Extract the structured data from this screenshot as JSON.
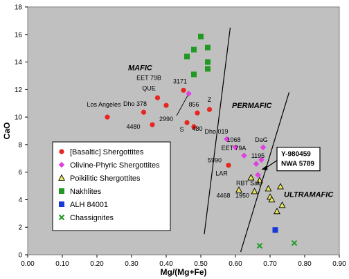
{
  "chart_data": {
    "type": "scatter",
    "xlabel": "Mg/(Mg+Fe)",
    "ylabel": "CaO",
    "xlim": [
      0,
      0.9
    ],
    "ylim": [
      0,
      18
    ],
    "xticks": [
      "0.00",
      "0.10",
      "0.20",
      "0.30",
      "0.40",
      "0.50",
      "0.60",
      "0.70",
      "0.80",
      "0.90"
    ],
    "yticks": [
      "0",
      "2",
      "4",
      "6",
      "8",
      "10",
      "12",
      "14",
      "16",
      "18"
    ],
    "grid": false,
    "legend_placement": "bottom-left",
    "series": [
      {
        "name": "[Basaltic] Shergottites",
        "marker": "circle",
        "color": "#e8251e",
        "points": [
          {
            "x": 0.23,
            "y": 10.0
          },
          {
            "x": 0.335,
            "y": 10.35
          },
          {
            "x": 0.36,
            "y": 9.45
          },
          {
            "x": 0.375,
            "y": 11.4
          },
          {
            "x": 0.4,
            "y": 10.85
          },
          {
            "x": 0.45,
            "y": 11.95
          },
          {
            "x": 0.46,
            "y": 9.6
          },
          {
            "x": 0.48,
            "y": 9.3
          },
          {
            "x": 0.49,
            "y": 10.3
          },
          {
            "x": 0.525,
            "y": 10.55
          },
          {
            "x": 0.58,
            "y": 6.5
          }
        ]
      },
      {
        "name": "Olivine-Phyric Shergottites",
        "marker": "diamond",
        "color": "#e040e0",
        "points": [
          {
            "x": 0.465,
            "y": 11.7
          },
          {
            "x": 0.575,
            "y": 8.4
          },
          {
            "x": 0.6,
            "y": 7.8
          },
          {
            "x": 0.625,
            "y": 7.2
          },
          {
            "x": 0.68,
            "y": 7.8
          },
          {
            "x": 0.675,
            "y": 6.9
          },
          {
            "x": 0.66,
            "y": 6.6
          },
          {
            "x": 0.665,
            "y": 5.8
          }
        ]
      },
      {
        "name": "Poikilitic Shergottites",
        "marker": "triangle",
        "color": "#e8e860",
        "points": [
          {
            "x": 0.61,
            "y": 4.7
          },
          {
            "x": 0.645,
            "y": 5.6
          },
          {
            "x": 0.655,
            "y": 4.6
          },
          {
            "x": 0.67,
            "y": 5.4
          },
          {
            "x": 0.695,
            "y": 4.8
          },
          {
            "x": 0.7,
            "y": 4.2
          },
          {
            "x": 0.705,
            "y": 4.0
          },
          {
            "x": 0.72,
            "y": 3.15
          },
          {
            "x": 0.73,
            "y": 4.95
          },
          {
            "x": 0.735,
            "y": 3.6
          }
        ]
      },
      {
        "name": "Nakhlites",
        "marker": "square",
        "color": "#229922",
        "points": [
          {
            "x": 0.5,
            "y": 15.85
          },
          {
            "x": 0.52,
            "y": 15.05
          },
          {
            "x": 0.48,
            "y": 14.9
          },
          {
            "x": 0.46,
            "y": 14.4
          },
          {
            "x": 0.52,
            "y": 14.0
          },
          {
            "x": 0.52,
            "y": 13.5
          },
          {
            "x": 0.48,
            "y": 13.1
          }
        ]
      },
      {
        "name": "ALH 84001",
        "marker": "square",
        "color": "#1838d8",
        "points": [
          {
            "x": 0.715,
            "y": 1.8
          }
        ]
      },
      {
        "name": "Chassignites",
        "marker": "cross",
        "color": "#229922",
        "points": [
          {
            "x": 0.67,
            "y": 0.65
          },
          {
            "x": 0.77,
            "y": 0.85
          }
        ]
      }
    ],
    "point_labels": [
      {
        "text": "Los Angeles",
        "x": 0.22,
        "y": 10.75
      },
      {
        "text": "Dho 378",
        "x": 0.31,
        "y": 10.8
      },
      {
        "text": "QUE",
        "x": 0.35,
        "y": 11.95
      },
      {
        "text": "EET 79B",
        "x": 0.35,
        "y": 12.7
      },
      {
        "text": "3171",
        "x": 0.44,
        "y": 12.45
      },
      {
        "text": "4480",
        "x": 0.305,
        "y": 9.15
      },
      {
        "text": "2990",
        "x": 0.4,
        "y": 9.7
      },
      {
        "text": "S",
        "x": 0.445,
        "y": 8.95
      },
      {
        "text": "480",
        "x": 0.49,
        "y": 9.0
      },
      {
        "text": "856",
        "x": 0.48,
        "y": 10.75
      },
      {
        "text": "Z",
        "x": 0.525,
        "y": 11.1
      },
      {
        "text": "Dho 019",
        "x": 0.545,
        "y": 8.8
      },
      {
        "text": "1068",
        "x": 0.595,
        "y": 8.2
      },
      {
        "text": "EET 79A",
        "x": 0.595,
        "y": 7.6
      },
      {
        "text": "DaG",
        "x": 0.675,
        "y": 8.2
      },
      {
        "text": "1195",
        "x": 0.665,
        "y": 7.05
      },
      {
        "text": "5990",
        "x": 0.54,
        "y": 6.7
      },
      {
        "text": "LAR",
        "x": 0.56,
        "y": 5.75
      },
      {
        "text": "RBT",
        "x": 0.62,
        "y": 5.05
      },
      {
        "text": "SaU",
        "x": 0.66,
        "y": 5.05
      },
      {
        "text": "4468",
        "x": 0.565,
        "y": 4.15
      },
      {
        "text": "1950",
        "x": 0.62,
        "y": 4.15
      }
    ],
    "leader_lines": [
      {
        "from": [
          0.43,
          10.1
        ],
        "to": [
          0.465,
          11.7
        ]
      }
    ],
    "regions": [
      {
        "text": "MAFIC",
        "x": 0.29,
        "y": 13.4
      },
      {
        "text": "PERMAFIC",
        "x": 0.59,
        "y": 10.65
      },
      {
        "text": "ULTRAMAFIC",
        "x": 0.74,
        "y": 4.2
      }
    ],
    "boundaries": [
      {
        "from": [
          0.51,
          1.5
        ],
        "to": [
          0.585,
          16.5
        ]
      },
      {
        "from": [
          0.615,
          0.2
        ],
        "to": [
          0.755,
          11.8
        ]
      }
    ],
    "callout": {
      "lines": [
        "Y-980459",
        "NWA 5789"
      ],
      "x": 0.72,
      "y": 6.55,
      "arrow_to": [
        0.675,
        6.2
      ]
    }
  }
}
